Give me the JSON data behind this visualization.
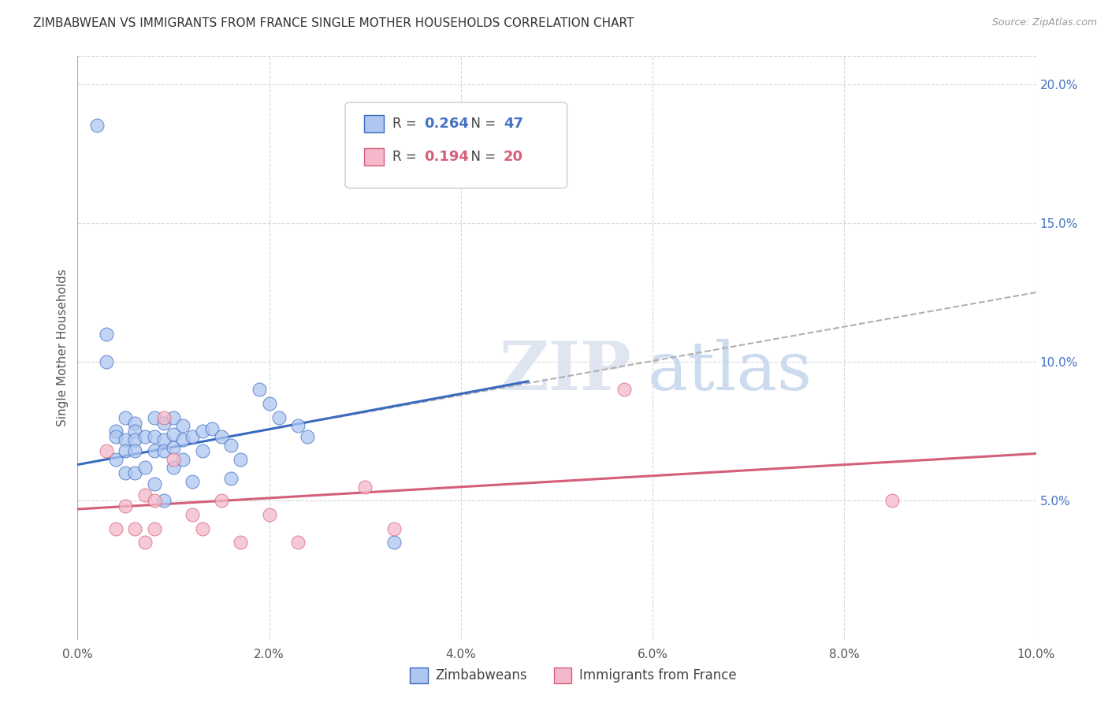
{
  "title": "ZIMBABWEAN VS IMMIGRANTS FROM FRANCE SINGLE MOTHER HOUSEHOLDS CORRELATION CHART",
  "source": "Source: ZipAtlas.com",
  "ylabel": "Single Mother Households",
  "legend_label1": "Zimbabweans",
  "legend_label2": "Immigrants from France",
  "R1": 0.264,
  "N1": 47,
  "R2": 0.194,
  "N2": 20,
  "xlim": [
    0.0,
    0.1
  ],
  "ylim": [
    0.0,
    0.21
  ],
  "xticks": [
    0.0,
    0.02,
    0.04,
    0.06,
    0.08,
    0.1
  ],
  "yticks": [
    0.05,
    0.1,
    0.15,
    0.2
  ],
  "color1": "#aec6f0",
  "color2": "#f4b8ca",
  "trend_color1": "#3a6abf",
  "trend_color2": "#d45f7a",
  "trend_color_ext": "#b0b0b0",
  "blue_x": [
    0.002,
    0.003,
    0.003,
    0.004,
    0.004,
    0.004,
    0.005,
    0.005,
    0.005,
    0.005,
    0.006,
    0.006,
    0.006,
    0.006,
    0.006,
    0.007,
    0.007,
    0.008,
    0.008,
    0.008,
    0.008,
    0.009,
    0.009,
    0.009,
    0.009,
    0.01,
    0.01,
    0.01,
    0.01,
    0.011,
    0.011,
    0.011,
    0.012,
    0.012,
    0.013,
    0.013,
    0.014,
    0.015,
    0.016,
    0.016,
    0.017,
    0.019,
    0.02,
    0.021,
    0.023,
    0.024,
    0.033
  ],
  "blue_y": [
    0.185,
    0.11,
    0.1,
    0.075,
    0.073,
    0.065,
    0.08,
    0.072,
    0.068,
    0.06,
    0.078,
    0.075,
    0.072,
    0.068,
    0.06,
    0.073,
    0.062,
    0.08,
    0.073,
    0.068,
    0.056,
    0.078,
    0.072,
    0.068,
    0.05,
    0.08,
    0.074,
    0.069,
    0.062,
    0.077,
    0.072,
    0.065,
    0.073,
    0.057,
    0.075,
    0.068,
    0.076,
    0.073,
    0.07,
    0.058,
    0.065,
    0.09,
    0.085,
    0.08,
    0.077,
    0.073,
    0.035
  ],
  "pink_x": [
    0.003,
    0.004,
    0.005,
    0.006,
    0.007,
    0.007,
    0.008,
    0.008,
    0.009,
    0.01,
    0.012,
    0.013,
    0.015,
    0.017,
    0.02,
    0.023,
    0.03,
    0.033,
    0.057,
    0.085
  ],
  "pink_y": [
    0.068,
    0.04,
    0.048,
    0.04,
    0.052,
    0.035,
    0.05,
    0.04,
    0.08,
    0.065,
    0.045,
    0.04,
    0.05,
    0.035,
    0.045,
    0.035,
    0.055,
    0.04,
    0.09,
    0.05
  ],
  "blue_line_x": [
    0.0,
    0.047
  ],
  "blue_line_y": [
    0.063,
    0.093
  ],
  "gray_line_x": [
    0.027,
    0.1
  ],
  "gray_line_y": [
    0.08,
    0.125
  ],
  "pink_line_x": [
    0.0,
    0.1
  ],
  "pink_line_y": [
    0.047,
    0.067
  ],
  "watermark_zip": "ZIP",
  "watermark_atlas": "atlas",
  "background_color": "#ffffff",
  "grid_color": "#d8d8d8"
}
